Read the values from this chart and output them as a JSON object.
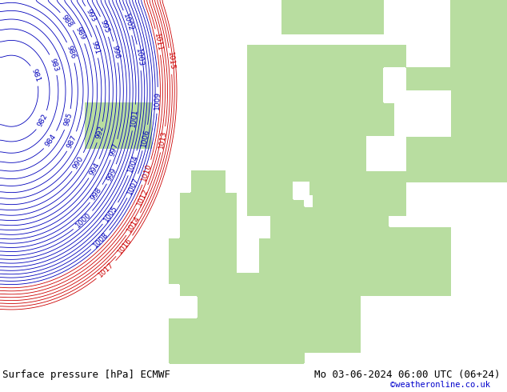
{
  "title_left": "Surface pressure [hPa] ECMWF",
  "title_right": "Mo 03-06-2024 06:00 UTC (06+24)",
  "credit": "©weatheronline.co.uk",
  "background_color": "#ffffff",
  "land_color": "#b8dda0",
  "sea_color": "#ffffff",
  "blue_contour_color": "#0000bb",
  "red_contour_color": "#cc0000",
  "black_contour_color": "#000000",
  "bottom_bar_color": "#d8d8d8",
  "bottom_text_color": "#000000",
  "credit_color": "#0000cc",
  "fig_width": 6.34,
  "fig_height": 4.9,
  "dpi": 100
}
